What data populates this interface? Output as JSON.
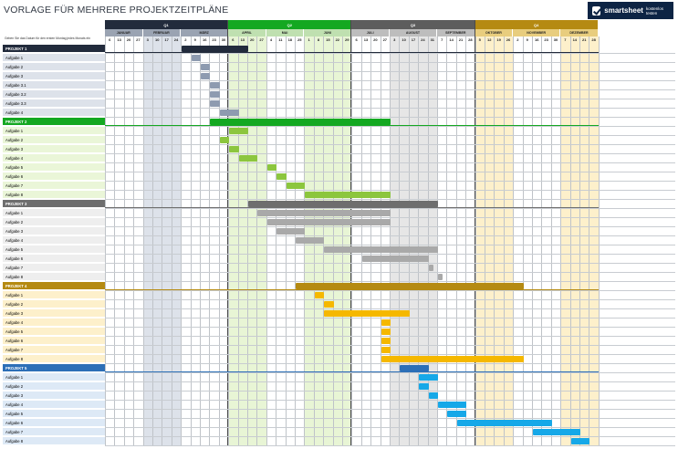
{
  "title": "VORLAGE FÜR MEHRERE PROJEKTZEITPLÄNE",
  "logo": {
    "brand": "smartsheet",
    "sub": "kostenlos testen"
  },
  "instruction": "Geben Sie das Datum für den ersten Montag jedes Monats ein",
  "quarters": [
    {
      "label": "Q1",
      "color": "#222b3c",
      "light": "#dde2ea",
      "mcolor": "#9aa3b2"
    },
    {
      "label": "Q2",
      "color": "#14a821",
      "light": "#e8f5d5",
      "mcolor": "#bfe0b0"
    },
    {
      "label": "Q3",
      "color": "#5d5d5d",
      "light": "#e6e6e6",
      "mcolor": "#bdbdbd"
    },
    {
      "label": "Q4",
      "color": "#b58a12",
      "light": "#fdf0cb",
      "mcolor": "#e8cd7e"
    }
  ],
  "months": [
    {
      "label": "JANUAR",
      "days": [
        "6",
        "13",
        "20",
        "27"
      ]
    },
    {
      "label": "FEBRUAR",
      "days": [
        "3",
        "10",
        "17",
        "24"
      ]
    },
    {
      "label": "MÄRZ",
      "days": [
        "2",
        "9",
        "16",
        "23",
        "30"
      ]
    },
    {
      "label": "APRIL",
      "days": [
        "6",
        "13",
        "20",
        "27"
      ]
    },
    {
      "label": "MAI",
      "days": [
        "4",
        "11",
        "18",
        "25"
      ]
    },
    {
      "label": "JUNI",
      "days": [
        "1",
        "8",
        "15",
        "22",
        "29"
      ]
    },
    {
      "label": "JULI",
      "days": [
        "6",
        "13",
        "20",
        "27"
      ]
    },
    {
      "label": "AUGUST",
      "days": [
        "3",
        "10",
        "17",
        "24",
        "31"
      ]
    },
    {
      "label": "SEPTEMBER",
      "days": [
        "7",
        "14",
        "21",
        "28"
      ]
    },
    {
      "label": "OKTOBER",
      "days": [
        "5",
        "12",
        "19",
        "26"
      ]
    },
    {
      "label": "NOVEMBER",
      "days": [
        "2",
        "9",
        "16",
        "23",
        "30"
      ]
    },
    {
      "label": "DEZEMBER",
      "days": [
        "7",
        "14",
        "21",
        "28"
      ]
    }
  ],
  "projects": [
    {
      "name": "PROJEKT 1",
      "color": "#222b3c",
      "bar": "#8e9bb0",
      "rowbg": "#dde2ea",
      "span": [
        8,
        15
      ],
      "tasks": [
        {
          "label": "Aufgabe 1",
          "span": [
            9,
            10
          ]
        },
        {
          "label": "Aufgabe 2",
          "span": [
            10,
            11
          ]
        },
        {
          "label": "Aufgabe 3",
          "span": [
            10,
            11
          ]
        },
        {
          "label": "Aufgabe 3.1",
          "span": [
            11,
            12
          ]
        },
        {
          "label": "Aufgabe 3.2",
          "span": [
            11,
            12
          ]
        },
        {
          "label": "Aufgabe 3.3",
          "span": [
            11,
            12
          ]
        },
        {
          "label": "Aufgabe 4",
          "span": [
            12,
            14
          ]
        }
      ]
    },
    {
      "name": "PROJEKT 2",
      "color": "#14a821",
      "bar": "#8cc63e",
      "rowbg": "#eaf6d8",
      "span": [
        11,
        30
      ],
      "tasks": [
        {
          "label": "Aufgabe 1",
          "span": [
            13,
            15
          ]
        },
        {
          "label": "Aufgabe 2",
          "span": [
            12,
            13
          ]
        },
        {
          "label": "Aufgabe 3",
          "span": [
            13,
            14
          ]
        },
        {
          "label": "Aufgabe 4",
          "span": [
            14,
            16
          ]
        },
        {
          "label": "Aufgabe 5",
          "span": [
            17,
            18
          ]
        },
        {
          "label": "Aufgabe 6",
          "span": [
            18,
            19
          ]
        },
        {
          "label": "Aufgabe 7",
          "span": [
            19,
            21
          ]
        },
        {
          "label": "Aufgabe 8",
          "span": [
            21,
            30
          ]
        }
      ]
    },
    {
      "name": "PROJEKT 3",
      "color": "#6e6e6e",
      "bar": "#a9a9a9",
      "rowbg": "#eeeeee",
      "span": [
        15,
        35
      ],
      "tasks": [
        {
          "label": "Aufgabe 1",
          "span": [
            16,
            30
          ]
        },
        {
          "label": "Aufgabe 2",
          "span": [
            17,
            30
          ]
        },
        {
          "label": "Aufgabe 3",
          "span": [
            18,
            21
          ]
        },
        {
          "label": "Aufgabe 4",
          "span": [
            20,
            23
          ]
        },
        {
          "label": "Aufgabe 5",
          "span": [
            23,
            35
          ]
        },
        {
          "label": "Aufgabe 6",
          "span": [
            27,
            34
          ]
        },
        {
          "label": "Aufgabe 7",
          "span": [
            34,
            34.5
          ]
        },
        {
          "label": "Aufgabe 8",
          "span": [
            35,
            35.5
          ]
        }
      ]
    },
    {
      "name": "PROJEKT 4",
      "color": "#b58a12",
      "bar": "#f5b800",
      "rowbg": "#fdf0cb",
      "span": [
        20,
        44
      ],
      "tasks": [
        {
          "label": "Aufgabe 1",
          "span": [
            22,
            23
          ]
        },
        {
          "label": "Aufgabe 2",
          "span": [
            23,
            24
          ]
        },
        {
          "label": "Aufgabe 3",
          "span": [
            23,
            32
          ]
        },
        {
          "label": "Aufgabe 4",
          "span": [
            29,
            30
          ]
        },
        {
          "label": "Aufgabe 5",
          "span": [
            29,
            30
          ]
        },
        {
          "label": "Aufgabe 6",
          "span": [
            29,
            30
          ]
        },
        {
          "label": "Aufgabe 7",
          "span": [
            29,
            30
          ]
        },
        {
          "label": "Aufgabe 8",
          "span": [
            29,
            44
          ]
        }
      ]
    },
    {
      "name": "PROJEKT 5",
      "color": "#2c6fb7",
      "bar": "#16a8e8",
      "rowbg": "#dde9f6",
      "span": [
        31,
        34
      ],
      "tasks": [
        {
          "label": "Aufgabe 1",
          "span": [
            33,
            35
          ]
        },
        {
          "label": "Aufgabe 2",
          "span": [
            33,
            34
          ]
        },
        {
          "label": "Aufgabe 3",
          "span": [
            34,
            35
          ]
        },
        {
          "label": "Aufgabe 4",
          "span": [
            35,
            38
          ]
        },
        {
          "label": "Aufgabe 5",
          "span": [
            36,
            38
          ]
        },
        {
          "label": "Aufgabe 6",
          "span": [
            37,
            47
          ]
        },
        {
          "label": "Aufgabe 7",
          "span": [
            45,
            50
          ]
        },
        {
          "label": "Aufgabe 8",
          "span": [
            49,
            51
          ]
        }
      ]
    }
  ]
}
